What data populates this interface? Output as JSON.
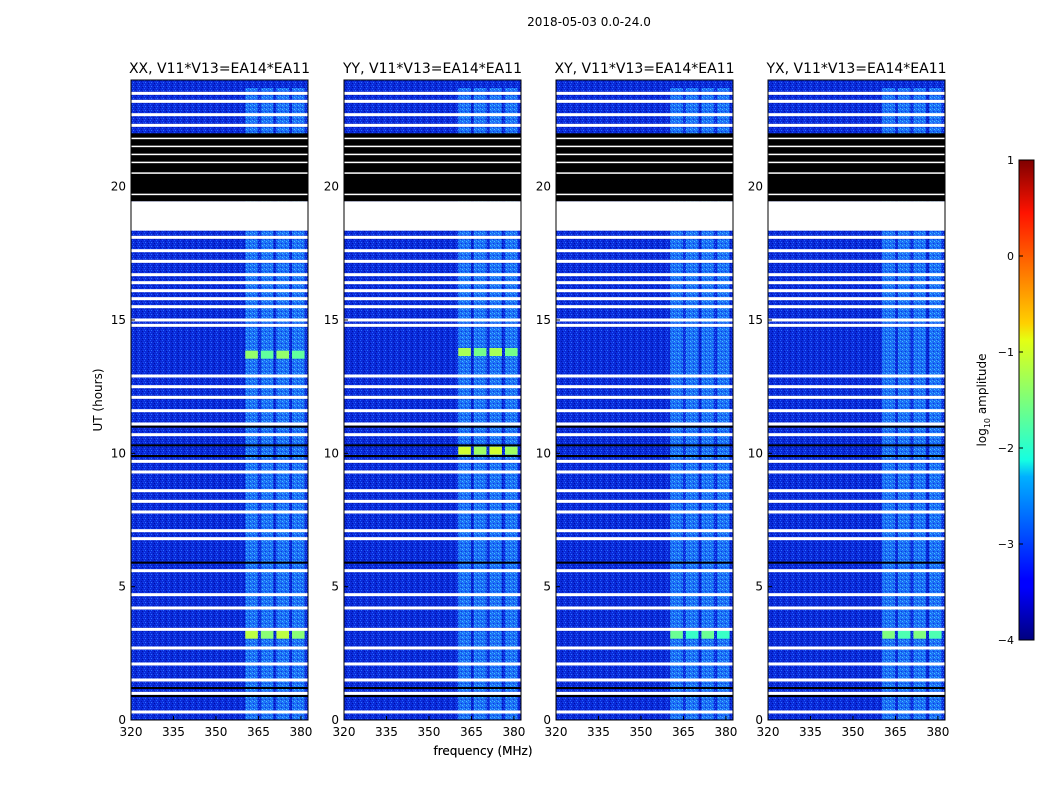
{
  "figure_title": "2018-05-03 0.0-24.0",
  "chart_data": [
    {
      "type": "heatmap",
      "title": "XX, V11*V13=EA14*EA11",
      "xlabel": "frequency (MHz)",
      "ylabel": "UT (hours)",
      "xlim": [
        320,
        382.5
      ],
      "ylim": [
        0,
        24
      ],
      "xticks": [
        320,
        335,
        350,
        365,
        380
      ],
      "yticks": [
        0,
        5,
        10,
        15,
        20
      ],
      "colorscale": "jet, log10 amplitude from -4 to 1",
      "rfi_band_mhz": [
        360,
        382
      ],
      "brightest_patches": [
        {
          "ut": 3.2,
          "freq_mhz": 362,
          "log10_amp": -1.2
        },
        {
          "ut": 13.7,
          "freq_mhz": 366,
          "log10_amp": -1.4
        }
      ]
    },
    {
      "type": "heatmap",
      "title": "YY, V11*V13=EA14*EA11",
      "xlabel": "frequency (MHz)",
      "ylabel": "",
      "xlim": [
        320,
        382.5
      ],
      "ylim": [
        0,
        24
      ],
      "xticks": [
        320,
        335,
        350,
        365,
        380
      ],
      "yticks": [
        0,
        5,
        10,
        15,
        20
      ],
      "colorscale": "jet, log10 amplitude from -4 to 1",
      "rfi_band_mhz": [
        360,
        382
      ],
      "brightest_patches": [
        {
          "ut": 10.1,
          "freq_mhz": 365,
          "log10_amp": -1.1
        },
        {
          "ut": 13.8,
          "freq_mhz": 365,
          "log10_amp": -1.3
        }
      ]
    },
    {
      "type": "heatmap",
      "title": "XY, V11*V13=EA14*EA11",
      "xlabel": "",
      "ylabel": "",
      "xlim": [
        320,
        382.5
      ],
      "ylim": [
        0,
        24
      ],
      "xticks": [
        320,
        335,
        350,
        365,
        380
      ],
      "yticks": [
        0,
        5,
        10,
        15,
        20
      ],
      "colorscale": "jet, log10 amplitude from -4 to 1",
      "rfi_band_mhz": [
        360,
        382
      ],
      "brightest_patches": [
        {
          "ut": 3.2,
          "freq_mhz": 365,
          "log10_amp": -1.6
        }
      ]
    },
    {
      "type": "heatmap",
      "title": "YX, V11*V13=EA14*EA11",
      "xlabel": "",
      "ylabel": "",
      "xlim": [
        320,
        382.5
      ],
      "ylim": [
        0,
        24
      ],
      "xticks": [
        320,
        335,
        350,
        365,
        380
      ],
      "yticks": [
        0,
        5,
        10,
        15,
        20
      ],
      "colorscale": "jet, log10 amplitude from -4 to 1",
      "rfi_band_mhz": [
        360,
        382
      ],
      "brightest_patches": [
        {
          "ut": 3.2,
          "freq_mhz": 365,
          "log10_amp": -1.5
        }
      ]
    }
  ],
  "shared": {
    "masked_white_rows_ut": [
      0.3,
      1.0,
      1.5,
      2.1,
      2.7,
      3.4,
      4.2,
      4.7,
      5.6,
      6.8,
      7.1,
      7.8,
      8.2,
      8.6,
      9.3,
      9.7,
      10.7,
      11.1,
      11.6,
      12.1,
      12.5,
      12.9,
      14.8,
      15.0,
      15.5,
      15.8,
      16.1,
      16.4,
      16.7,
      17.2,
      17.6,
      18.1,
      22.3,
      22.7,
      23.2,
      23.5
    ],
    "masked_black_rows_ut": [
      0.9,
      1.2,
      5.9,
      9.9,
      10.3,
      11.0
    ],
    "masked_white_block_ut": [
      18.35,
      19.45
    ],
    "black_block_ut": [
      19.45,
      22.0
    ],
    "black_block_white_lines_ut": [
      19.7,
      20.5,
      20.9,
      21.2,
      21.5,
      21.8
    ],
    "colorbar": {
      "label": "log10 amplitude",
      "range": [
        -4,
        1
      ],
      "ticks": [
        1,
        0,
        -1,
        -2,
        -3,
        -4
      ],
      "tick_labels": [
        "1",
        "0",
        "−1",
        "−2",
        "−3",
        "−4"
      ]
    }
  }
}
